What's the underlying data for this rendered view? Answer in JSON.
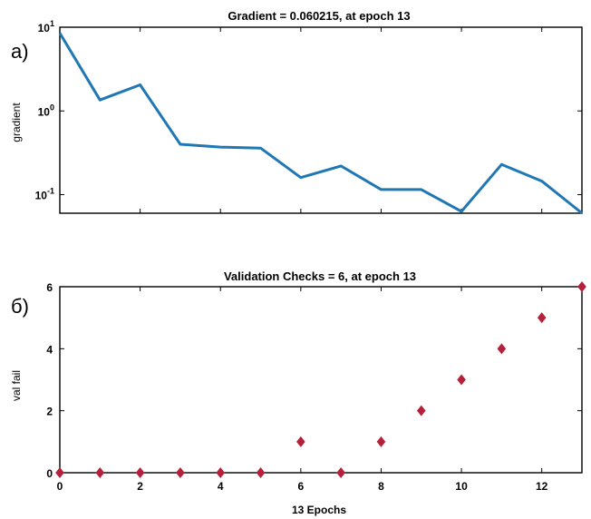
{
  "chart_data": [
    {
      "panel_label": "а)",
      "type": "line",
      "title": "Gradient = 0.060215, at epoch 13",
      "xlabel": "",
      "ylabel": "gradient",
      "yscale": "log",
      "ylim": [
        0.06,
        10
      ],
      "xlim": [
        0,
        13
      ],
      "yticks": [
        {
          "value": 10,
          "base": "10",
          "exp": "1"
        },
        {
          "value": 1,
          "base": "10",
          "exp": "0"
        },
        {
          "value": 0.1,
          "base": "10",
          "exp": "-1"
        }
      ],
      "x": [
        0,
        1,
        2,
        3,
        4,
        5,
        6,
        7,
        8,
        9,
        10,
        11,
        12,
        13
      ],
      "values": [
        8.5,
        1.35,
        2.05,
        0.4,
        0.37,
        0.36,
        0.16,
        0.22,
        0.115,
        0.115,
        0.063,
        0.23,
        0.145,
        0.060215
      ],
      "color": "#1f77b4",
      "grid": false
    },
    {
      "panel_label": "б)",
      "type": "scatter",
      "title": "Validation Checks = 6, at epoch 13",
      "xlabel": "13 Epochs",
      "ylabel": "val fail",
      "ylim": [
        0,
        6
      ],
      "xlim": [
        0,
        13
      ],
      "xticks": [
        "0",
        "2",
        "4",
        "6",
        "8",
        "10",
        "12"
      ],
      "yticks": [
        "0",
        "2",
        "4",
        "6"
      ],
      "x": [
        0,
        1,
        2,
        3,
        4,
        5,
        6,
        7,
        8,
        9,
        10,
        11,
        12,
        13
      ],
      "values": [
        0,
        0,
        0,
        0,
        0,
        0,
        1,
        0,
        1,
        2,
        3,
        4,
        5,
        6
      ],
      "marker": "diamond",
      "color": "#b5203a",
      "grid": false
    }
  ]
}
